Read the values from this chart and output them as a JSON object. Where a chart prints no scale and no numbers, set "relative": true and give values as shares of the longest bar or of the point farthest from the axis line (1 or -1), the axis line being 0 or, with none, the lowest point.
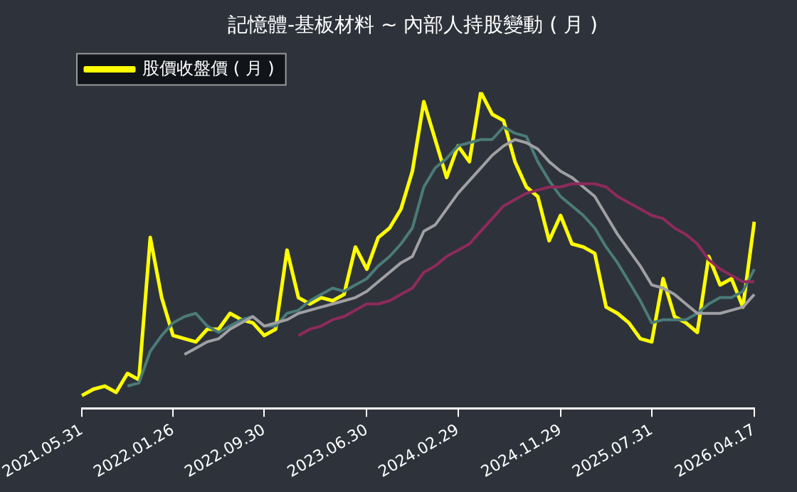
{
  "chart_data": {
    "type": "line",
    "title": "記憶體-基板材料 ~ 內部人持股變動 ( 月 )",
    "relative": true,
    "legend": "top left",
    "grid": false,
    "categories": [
      "2021.05.31",
      null,
      null,
      null,
      null,
      null,
      null,
      null,
      "2022.01.26",
      null,
      null,
      null,
      null,
      null,
      null,
      null,
      "2022.09.30",
      null,
      null,
      null,
      null,
      null,
      null,
      null,
      null,
      "2023.06.30",
      null,
      null,
      null,
      null,
      null,
      null,
      null,
      "2024.02.29",
      null,
      null,
      null,
      null,
      null,
      null,
      null,
      null,
      "2024.11.29",
      null,
      null,
      null,
      null,
      null,
      null,
      null,
      "2025.07.31",
      null,
      null,
      null,
      null,
      null,
      null,
      null,
      null,
      "2026.04.17"
    ],
    "series": [
      {
        "name": "股價收盤價 ( 月 )",
        "color": "#ffff00",
        "values": [
          0.04,
          0.06,
          0.07,
          0.05,
          0.11,
          0.09,
          0.54,
          0.35,
          0.23,
          0.22,
          0.21,
          0.25,
          0.25,
          0.3,
          0.28,
          0.27,
          0.23,
          0.25,
          0.5,
          0.35,
          0.33,
          0.35,
          0.34,
          0.36,
          0.51,
          0.44,
          0.54,
          0.57,
          0.63,
          0.75,
          0.97,
          0.85,
          0.73,
          0.83,
          0.78,
          1.0,
          0.93,
          0.91,
          0.78,
          0.7,
          0.67,
          0.53,
          0.61,
          0.52,
          0.51,
          0.49,
          0.32,
          0.3,
          0.27,
          0.22,
          0.21,
          0.41,
          0.29,
          0.27,
          0.24,
          0.48,
          0.39,
          0.41,
          0.32,
          0.59
        ]
      },
      {
        "color": "#4b7b79",
        "values": [
          null,
          null,
          null,
          null,
          0.07,
          0.08,
          0.18,
          0.23,
          0.27,
          0.29,
          0.3,
          0.26,
          0.24,
          0.26,
          0.28,
          0.29,
          0.26,
          0.26,
          0.3,
          0.31,
          0.34,
          0.36,
          0.38,
          0.37,
          0.39,
          0.41,
          0.45,
          0.48,
          0.52,
          0.57,
          0.7,
          0.76,
          0.79,
          0.83,
          0.84,
          0.85,
          0.85,
          0.89,
          0.87,
          0.86,
          0.78,
          0.72,
          0.67,
          0.64,
          0.61,
          0.57,
          0.51,
          0.46,
          0.4,
          0.34,
          0.27,
          0.28,
          0.28,
          0.28,
          0.3,
          0.33,
          0.35,
          0.35,
          0.37,
          0.44
        ]
      },
      {
        "color": "#a0a0a4",
        "values": [
          null,
          null,
          null,
          null,
          null,
          null,
          null,
          null,
          null,
          0.17,
          0.19,
          0.21,
          0.22,
          0.25,
          0.27,
          0.29,
          0.26,
          0.27,
          0.28,
          0.3,
          0.31,
          0.32,
          0.33,
          0.34,
          0.35,
          0.37,
          0.4,
          0.43,
          0.46,
          0.48,
          0.56,
          0.58,
          0.63,
          0.68,
          0.72,
          0.76,
          0.8,
          0.83,
          0.85,
          0.84,
          0.82,
          0.78,
          0.75,
          0.73,
          0.7,
          0.67,
          0.61,
          0.55,
          0.5,
          0.45,
          0.39,
          0.38,
          0.36,
          0.33,
          0.3,
          0.3,
          0.3,
          0.31,
          0.32,
          0.36
        ]
      },
      {
        "color": "#8e2a5c",
        "values": [
          null,
          null,
          null,
          null,
          null,
          null,
          null,
          null,
          null,
          null,
          null,
          null,
          null,
          null,
          null,
          null,
          null,
          null,
          null,
          0.23,
          0.25,
          0.26,
          0.28,
          0.29,
          0.31,
          0.33,
          0.33,
          0.34,
          0.36,
          0.38,
          0.43,
          0.45,
          0.48,
          0.5,
          0.52,
          0.56,
          0.6,
          0.64,
          0.66,
          0.68,
          0.69,
          0.7,
          0.7,
          0.71,
          0.71,
          0.71,
          0.7,
          0.67,
          0.65,
          0.63,
          0.61,
          0.6,
          0.57,
          0.55,
          0.52,
          0.47,
          0.44,
          0.42,
          0.4,
          0.4
        ]
      }
    ]
  }
}
